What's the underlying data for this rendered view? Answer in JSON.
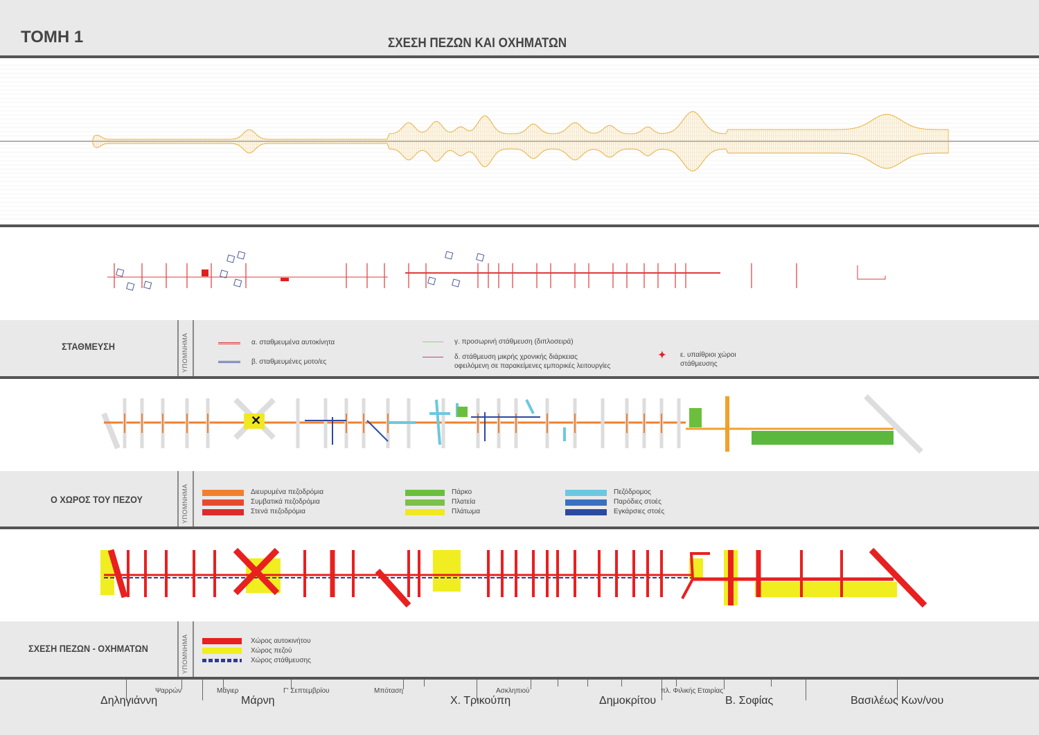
{
  "header": {
    "section": "ΤΟΜΗ 1",
    "title": "ΣΧΕΣΗ ΠΕΖΩΝ ΚΑΙ ΟΧΗΜΑΤΩΝ"
  },
  "legend_tag": "ΥΠΟΜΝΗΜΑ",
  "parking": {
    "title": "ΣΤΑΘΜΕΥΣΗ",
    "items": [
      {
        "label": "α. σταθμευμένα αυτοκίνητα",
        "color": "#e03a3a"
      },
      {
        "label": "β. σταθμευμένες μοτο/ες",
        "color": "#4a5a9a"
      },
      {
        "label": "γ. προσωρινή στάθμευση (διπλοσειρά)",
        "color": "#8fd08f"
      },
      {
        "label": "δ. στάθμευση μικρής χρονικής διάρκειας",
        "label2": "οφειλόμενη σε παρακείμενες εμπορικές λειτουργίες",
        "color": "#c0407a"
      },
      {
        "label": "ε. υπαίθριοι χώροι",
        "label2": "στάθμευσης",
        "color": "#e02020"
      }
    ]
  },
  "pedestrian": {
    "title": "Ο ΧΩΡΟΣ ΤΟΥ ΠΕΖΟΥ",
    "items": [
      {
        "label": "Διευρυμένα πεζοδρόμια",
        "color": "#f08030"
      },
      {
        "label": "Συμβατικά πεζοδρόμια",
        "color": "#e84a30"
      },
      {
        "label": "Στενά πεζοδρόμια",
        "color": "#dd2a2a"
      },
      {
        "label": "Πάρκο",
        "color": "#6cbf3c"
      },
      {
        "label": "Πλατεία",
        "color": "#7cc04a"
      },
      {
        "label": "Πλάτωμα",
        "color": "#f0e820"
      },
      {
        "label": "Πεζόδρομος",
        "color": "#6cc8e0"
      },
      {
        "label": "Παρόδιες στοές",
        "color": "#3a70c0"
      },
      {
        "label": "Εγκάρσιες στοές",
        "color": "#2a4aa0"
      }
    ]
  },
  "relation": {
    "title": "ΣΧΕΣΗ ΠΕΖΩΝ - ΟΧΗΜΑΤΩΝ",
    "items": [
      {
        "label": "Χώρος αυτοκινήτου",
        "color": "#e82020"
      },
      {
        "label": "Χώρος πεζού",
        "color": "#f0ee20"
      },
      {
        "label": "Χώρος στάθμευσης",
        "color": "#2a3aa0"
      }
    ]
  },
  "streets": {
    "major": [
      "Δηληγιάννη",
      "Μάρνη",
      "Χ. Τρικούπη",
      "Δημοκρίτου",
      "Β. Σοφίας",
      "Βασιλέως Κων/νου"
    ],
    "minor": [
      "Ψαρρών",
      "Μάγιερ",
      "Γ' Σεπτεμβρίου",
      "Μπόταση",
      "Ασκληπιού",
      "πλ. Φιλικής Εταιρίας"
    ]
  }
}
